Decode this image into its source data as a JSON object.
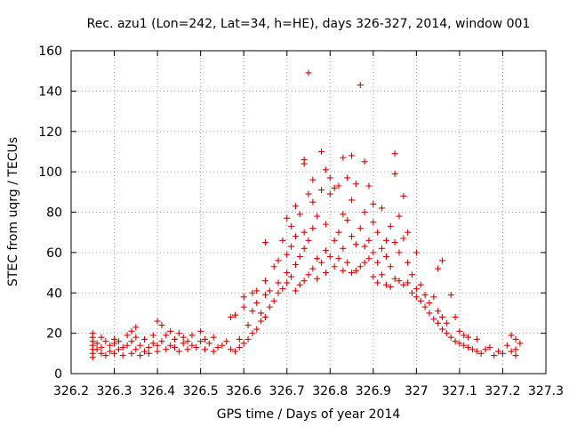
{
  "chart_data": {
    "type": "scatter",
    "title": "Rec. azu1 (Lon=242, Lat=34, h=HE), days 326-327, 2014, window 001",
    "xlabel": "GPS time / Days of year 2014",
    "ylabel": "STEC from uqrg / TECUs",
    "xlim": [
      326.2,
      327.3
    ],
    "ylim": [
      0,
      160
    ],
    "xticks": [
      326.2,
      326.3,
      326.4,
      326.5,
      326.6,
      326.7,
      326.8,
      326.9,
      327,
      327.1,
      327.2,
      327.3
    ],
    "xtick_labels": [
      "326.2",
      "326.3",
      "326.4",
      "326.5",
      "326.6",
      "326.7",
      "326.8",
      "326.9",
      "327",
      "327.1",
      "327.2",
      "327.3"
    ],
    "yticks": [
      0,
      20,
      40,
      60,
      80,
      100,
      120,
      140,
      160
    ],
    "ytick_labels": [
      "0",
      "20",
      "40",
      "60",
      "80",
      "100",
      "120",
      "140",
      "160"
    ],
    "grid": true,
    "marker": "plus",
    "color": "#dd0000",
    "series": [
      {
        "points": [
          [
            326.25,
            8
          ],
          [
            326.25,
            10
          ],
          [
            326.25,
            12
          ],
          [
            326.25,
            14
          ],
          [
            326.25,
            16
          ],
          [
            326.25,
            18
          ],
          [
            326.25,
            20
          ],
          [
            326.26,
            12
          ],
          [
            326.26,
            15
          ],
          [
            326.27,
            10
          ],
          [
            326.27,
            18
          ],
          [
            326.27,
            13
          ],
          [
            326.28,
            9
          ],
          [
            326.28,
            16
          ],
          [
            326.29,
            11
          ],
          [
            326.29,
            14
          ],
          [
            326.3,
            10
          ],
          [
            326.3,
            15
          ],
          [
            326.3,
            17
          ],
          [
            326.31,
            12
          ],
          [
            326.31,
            16
          ],
          [
            326.32,
            9
          ],
          [
            326.32,
            13
          ],
          [
            326.33,
            14
          ],
          [
            326.33,
            19
          ],
          [
            326.34,
            10
          ],
          [
            326.34,
            16
          ],
          [
            326.34,
            21
          ],
          [
            326.35,
            12
          ],
          [
            326.35,
            18
          ],
          [
            326.35,
            23
          ],
          [
            326.36,
            9
          ],
          [
            326.36,
            14
          ],
          [
            326.37,
            11
          ],
          [
            326.37,
            17
          ],
          [
            326.38,
            13
          ],
          [
            326.38,
            10
          ],
          [
            326.39,
            15
          ],
          [
            326.39,
            19
          ],
          [
            326.4,
            11
          ],
          [
            326.4,
            14
          ],
          [
            326.4,
            26
          ],
          [
            326.41,
            16
          ],
          [
            326.41,
            24
          ],
          [
            326.42,
            12
          ],
          [
            326.42,
            19
          ],
          [
            326.43,
            14
          ],
          [
            326.43,
            21
          ],
          [
            326.44,
            13
          ],
          [
            326.44,
            17
          ],
          [
            326.45,
            11
          ],
          [
            326.45,
            20
          ],
          [
            326.46,
            15
          ],
          [
            326.46,
            18
          ],
          [
            326.47,
            12
          ],
          [
            326.47,
            16
          ],
          [
            326.48,
            14
          ],
          [
            326.48,
            19
          ],
          [
            326.49,
            13
          ],
          [
            326.5,
            16
          ],
          [
            326.5,
            21
          ],
          [
            326.51,
            12
          ],
          [
            326.51,
            17
          ],
          [
            326.52,
            15
          ],
          [
            326.53,
            11
          ],
          [
            326.53,
            18
          ],
          [
            326.54,
            13
          ],
          [
            326.55,
            14
          ],
          [
            326.56,
            16
          ],
          [
            326.57,
            12
          ],
          [
            326.57,
            28
          ],
          [
            326.58,
            11
          ],
          [
            326.58,
            29
          ],
          [
            326.59,
            13
          ],
          [
            326.59,
            17
          ],
          [
            326.6,
            15
          ],
          [
            326.6,
            33
          ],
          [
            326.6,
            38
          ],
          [
            326.61,
            17
          ],
          [
            326.61,
            24
          ],
          [
            326.62,
            20
          ],
          [
            326.62,
            40
          ],
          [
            326.62,
            31
          ],
          [
            326.63,
            22
          ],
          [
            326.63,
            35
          ],
          [
            326.63,
            41
          ],
          [
            326.64,
            26
          ],
          [
            326.64,
            30
          ],
          [
            326.65,
            28
          ],
          [
            326.65,
            39
          ],
          [
            326.65,
            46
          ],
          [
            326.65,
            65
          ],
          [
            326.66,
            33
          ],
          [
            326.66,
            41
          ],
          [
            326.67,
            36
          ],
          [
            326.67,
            53
          ],
          [
            326.68,
            40
          ],
          [
            326.68,
            45
          ],
          [
            326.68,
            56
          ],
          [
            326.69,
            42
          ],
          [
            326.69,
            66
          ],
          [
            326.7,
            45
          ],
          [
            326.7,
            50
          ],
          [
            326.7,
            59
          ],
          [
            326.7,
            77
          ],
          [
            326.71,
            48
          ],
          [
            326.71,
            63
          ],
          [
            326.71,
            73
          ],
          [
            326.72,
            41
          ],
          [
            326.72,
            54
          ],
          [
            326.72,
            68
          ],
          [
            326.72,
            83
          ],
          [
            326.73,
            44
          ],
          [
            326.73,
            58
          ],
          [
            326.73,
            79
          ],
          [
            326.74,
            46
          ],
          [
            326.74,
            62
          ],
          [
            326.74,
            70
          ],
          [
            326.74,
            104
          ],
          [
            326.74,
            106
          ],
          [
            326.75,
            49
          ],
          [
            326.75,
            66
          ],
          [
            326.75,
            89
          ],
          [
            326.75,
            149
          ],
          [
            326.76,
            52
          ],
          [
            326.76,
            72
          ],
          [
            326.76,
            85
          ],
          [
            326.76,
            96
          ],
          [
            326.77,
            47
          ],
          [
            326.77,
            57
          ],
          [
            326.77,
            78
          ],
          [
            326.78,
            55
          ],
          [
            326.78,
            110
          ],
          [
            326.78,
            91
          ],
          [
            326.79,
            50
          ],
          [
            326.79,
            61
          ],
          [
            326.79,
            74
          ],
          [
            326.79,
            101
          ],
          [
            326.8,
            58
          ],
          [
            326.8,
            89
          ],
          [
            326.8,
            97
          ],
          [
            326.81,
            53
          ],
          [
            326.81,
            66
          ],
          [
            326.81,
            92
          ],
          [
            326.82,
            57
          ],
          [
            326.82,
            70
          ],
          [
            326.82,
            93
          ],
          [
            326.83,
            51
          ],
          [
            326.83,
            62
          ],
          [
            326.83,
            79
          ],
          [
            326.83,
            107
          ],
          [
            326.84,
            55
          ],
          [
            326.84,
            76
          ],
          [
            326.84,
            97
          ],
          [
            326.85,
            50
          ],
          [
            326.85,
            68
          ],
          [
            326.85,
            86
          ],
          [
            326.85,
            108
          ],
          [
            326.86,
            51
          ],
          [
            326.86,
            64
          ],
          [
            326.86,
            94
          ],
          [
            326.87,
            143
          ],
          [
            326.87,
            53
          ],
          [
            326.87,
            72
          ],
          [
            326.88,
            55
          ],
          [
            326.88,
            63
          ],
          [
            326.88,
            80
          ],
          [
            326.88,
            105
          ],
          [
            326.89,
            57
          ],
          [
            326.89,
            66
          ],
          [
            326.89,
            93
          ],
          [
            326.9,
            48
          ],
          [
            326.9,
            60
          ],
          [
            326.9,
            75
          ],
          [
            326.9,
            84
          ],
          [
            326.91,
            45
          ],
          [
            326.91,
            55
          ],
          [
            326.91,
            70
          ],
          [
            326.92,
            49
          ],
          [
            326.92,
            62
          ],
          [
            326.92,
            82
          ],
          [
            326.93,
            44
          ],
          [
            326.93,
            58
          ],
          [
            326.93,
            66
          ],
          [
            326.94,
            43
          ],
          [
            326.94,
            53
          ],
          [
            326.94,
            73
          ],
          [
            326.95,
            47
          ],
          [
            326.95,
            65
          ],
          [
            326.95,
            99
          ],
          [
            326.95,
            109
          ],
          [
            326.96,
            46
          ],
          [
            326.96,
            60
          ],
          [
            326.96,
            78
          ],
          [
            326.97,
            44
          ],
          [
            326.97,
            67
          ],
          [
            326.97,
            88
          ],
          [
            326.98,
            45
          ],
          [
            326.98,
            55
          ],
          [
            326.98,
            70
          ],
          [
            326.99,
            40
          ],
          [
            326.99,
            49
          ],
          [
            327.0,
            42
          ],
          [
            327.0,
            38
          ],
          [
            327.0,
            60
          ],
          [
            327.01,
            36
          ],
          [
            327.01,
            44
          ],
          [
            327.02,
            33
          ],
          [
            327.02,
            39
          ],
          [
            327.03,
            35
          ],
          [
            327.03,
            30
          ],
          [
            327.04,
            27
          ],
          [
            327.04,
            38
          ],
          [
            327.05,
            25
          ],
          [
            327.05,
            31
          ],
          [
            327.05,
            52
          ],
          [
            327.06,
            22
          ],
          [
            327.06,
            28
          ],
          [
            327.06,
            56
          ],
          [
            327.07,
            20
          ],
          [
            327.07,
            25
          ],
          [
            327.08,
            18
          ],
          [
            327.08,
            39
          ],
          [
            327.09,
            16
          ],
          [
            327.09,
            28
          ],
          [
            327.1,
            15
          ],
          [
            327.1,
            21
          ],
          [
            327.11,
            14
          ],
          [
            327.11,
            19
          ],
          [
            327.12,
            13
          ],
          [
            327.12,
            18
          ],
          [
            327.13,
            12
          ],
          [
            327.14,
            11
          ],
          [
            327.14,
            17
          ],
          [
            327.15,
            10
          ],
          [
            327.16,
            12
          ],
          [
            327.17,
            13
          ],
          [
            327.18,
            9
          ],
          [
            327.19,
            11
          ],
          [
            327.2,
            10
          ],
          [
            327.21,
            14
          ],
          [
            327.22,
            11
          ],
          [
            327.22,
            19
          ],
          [
            327.23,
            12
          ],
          [
            327.23,
            17
          ],
          [
            327.23,
            9
          ],
          [
            327.24,
            15
          ]
        ]
      }
    ]
  }
}
